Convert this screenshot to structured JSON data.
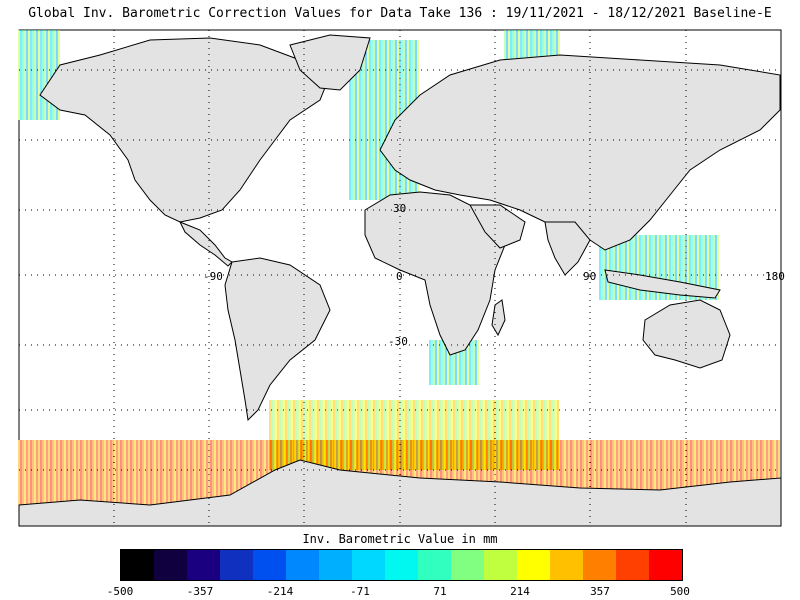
{
  "title": "Global Inv. Barometric Correction Values for Data Take 136 : 19/11/2021 - 18/12/2021 Baseline-E",
  "map": {
    "lon_labels": [
      "-90",
      "0",
      "90",
      "180"
    ],
    "lat_labels": [
      "30",
      "-30"
    ],
    "land_color": "#e3e3e3",
    "ocean_color": "#ffffff"
  },
  "colorbar": {
    "label": "Inv. Barometric Value in mm",
    "ticks": [
      "-500",
      "-357",
      "-214",
      "-71",
      "71",
      "214",
      "357",
      "500"
    ],
    "colors": [
      "#000000",
      "#100040",
      "#1a0080",
      "#1030c0",
      "#0050f0",
      "#0088ff",
      "#00b0ff",
      "#00d8ff",
      "#00f8f0",
      "#30ffc0",
      "#80ff80",
      "#c0ff40",
      "#ffff00",
      "#ffc000",
      "#ff8000",
      "#ff4000",
      "#ff0000"
    ]
  }
}
